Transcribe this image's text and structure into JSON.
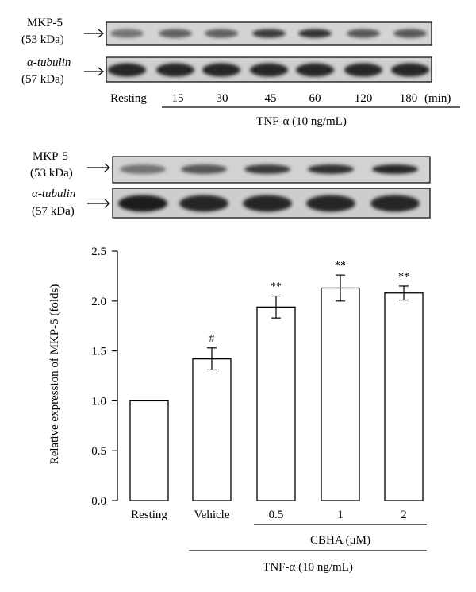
{
  "blot1": {
    "label_mkp5": "MKP-5",
    "label_mkp5_kda": "(53 kDa)",
    "label_tubulin": "α-tubulin",
    "label_tubulin_kda": "(57 kDa)",
    "lanes": [
      "Resting",
      "15",
      "30",
      "45",
      "60",
      "120",
      "180"
    ],
    "unit": "(min)",
    "treatment": "TNF-α (10 ng/mL)",
    "mkp5_band_intensity": [
      0.45,
      0.55,
      0.55,
      0.75,
      0.8,
      0.6,
      0.6
    ],
    "tubulin_band_intensity": [
      0.85,
      0.85,
      0.85,
      0.85,
      0.85,
      0.85,
      0.85
    ]
  },
  "blot2": {
    "label_mkp5": "MKP-5",
    "label_mkp5_kda": "(53 kDa)",
    "label_tubulin": "α-tubulin",
    "label_tubulin_kda": "(57 kDa)",
    "mkp5_band_intensity": [
      0.45,
      0.6,
      0.75,
      0.8,
      0.85
    ],
    "tubulin_band_intensity": [
      0.9,
      0.85,
      0.85,
      0.85,
      0.85
    ]
  },
  "chart_data": {
    "type": "bar",
    "categories": [
      "Resting",
      "Vehicle",
      "0.5",
      "1",
      "2"
    ],
    "values": [
      1.0,
      1.42,
      1.94,
      2.13,
      2.08
    ],
    "errors": [
      0.0,
      0.11,
      0.11,
      0.13,
      0.07
    ],
    "annotations": [
      "",
      "#",
      "**",
      "**",
      "**"
    ],
    "ylabel": "Relative expression of MKP-5 (folds)",
    "yticks": [
      "0.0",
      "0.5",
      "1.0",
      "1.5",
      "2.0",
      "2.5"
    ],
    "ylim": [
      0,
      2.5
    ],
    "group_label_cbha": "CBHA (μM)",
    "group_label_tnf": "TNF-α (10 ng/mL)",
    "bar_color": "#ffffff",
    "edge_color": "#000000"
  }
}
